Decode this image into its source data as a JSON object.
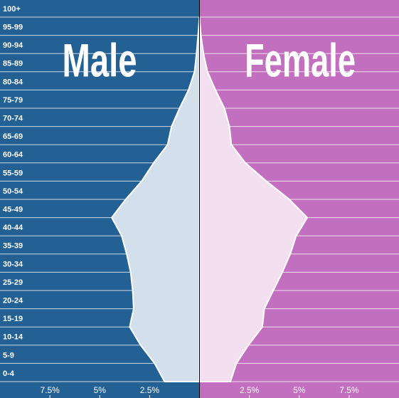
{
  "chart_data": {
    "type": "pyramid",
    "categories": [
      "100+",
      "95-99",
      "90-94",
      "85-89",
      "80-84",
      "75-79",
      "70-74",
      "65-69",
      "60-64",
      "55-59",
      "50-54",
      "45-49",
      "40-44",
      "35-39",
      "30-34",
      "25-29",
      "20-24",
      "15-19",
      "10-14",
      "5-9",
      "0-4"
    ],
    "series": [
      {
        "name": "Male",
        "color": "#236194",
        "values": [
          0,
          -0.07,
          -0.15,
          -0.25,
          -0.55,
          -1.0,
          -1.4,
          -1.6,
          -2.3,
          -2.9,
          -3.7,
          -4.4,
          -3.9,
          -3.65,
          -3.45,
          -3.35,
          -3.3,
          -3.5,
          -2.95,
          -2.25,
          -1.75
        ]
      },
      {
        "name": "Female",
        "color": "#c36fbf",
        "values": [
          0,
          0.07,
          0.2,
          0.4,
          0.8,
          1.25,
          1.5,
          1.6,
          2.3,
          3.35,
          4.5,
          5.4,
          4.85,
          4.55,
          4.15,
          3.7,
          3.25,
          3.15,
          2.45,
          1.85,
          1.55
        ]
      }
    ],
    "xlim": [
      -10,
      10
    ],
    "xticks": [
      {
        "value": -7.5,
        "label": "7.5%"
      },
      {
        "value": -5,
        "label": "5%"
      },
      {
        "value": -2.5,
        "label": "2.5%"
      },
      {
        "value": 2.5,
        "label": "2.5%"
      },
      {
        "value": 5,
        "label": "5%"
      },
      {
        "value": 7.5,
        "label": "7.5%"
      }
    ]
  }
}
